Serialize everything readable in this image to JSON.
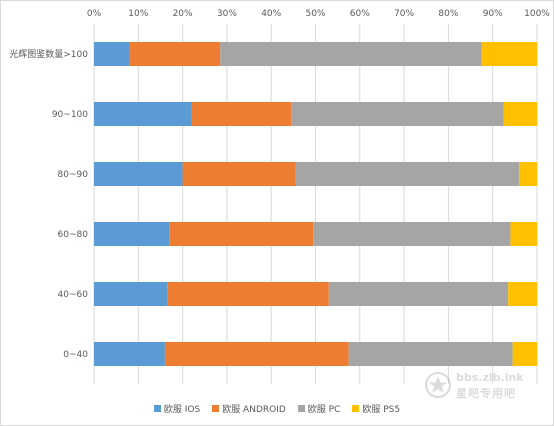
{
  "chart_data": {
    "type": "bar",
    "orientation": "horizontal",
    "stacking": "percent",
    "categories": [
      "光辉图鉴数量>100",
      "90~100",
      "80~90",
      "60~80",
      "40~60",
      "0~40"
    ],
    "series": [
      {
        "name": "欧服 IOS",
        "color": "#5b9bd5",
        "values": [
          8.0,
          22.0,
          20.0,
          17.0,
          16.5,
          16.0
        ]
      },
      {
        "name": "欧服 ANDROID",
        "color": "#ed7d31",
        "values": [
          20.5,
          22.5,
          25.5,
          32.5,
          36.5,
          41.5
        ]
      },
      {
        "name": "欧服 PC",
        "color": "#a5a5a5",
        "values": [
          59.0,
          48.0,
          50.5,
          44.5,
          40.5,
          37.0
        ]
      },
      {
        "name": "欧服 PS5",
        "color": "#ffc000",
        "values": [
          12.5,
          7.5,
          4.0,
          6.0,
          6.5,
          5.5
        ]
      }
    ],
    "xaxis": {
      "ticks": [
        "0%",
        "10%",
        "20%",
        "30%",
        "40%",
        "50%",
        "60%",
        "70%",
        "80%",
        "90%",
        "100%"
      ],
      "range": [
        0,
        100
      ],
      "position": "top"
    },
    "grid": true,
    "legend_position": "bottom"
  },
  "watermark": {
    "line1": "bbs.zlb.ink",
    "line2": "星吧专用吧",
    "logo_icon": "star-logo-icon"
  }
}
